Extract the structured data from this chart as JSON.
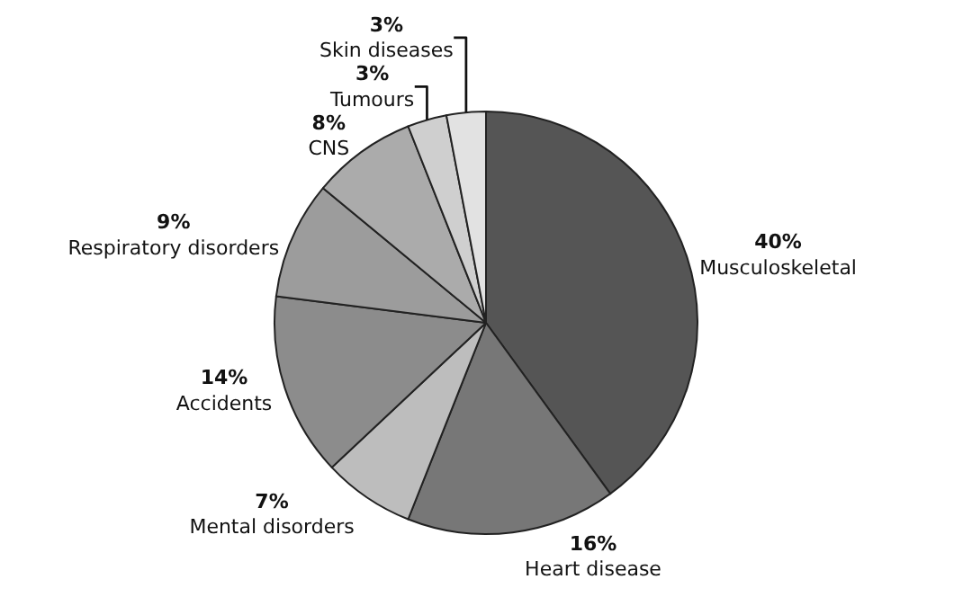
{
  "chart_data": {
    "type": "pie",
    "categories": [
      "Musculoskeletal",
      "Heart disease",
      "Mental disorders",
      "Accidents",
      "Respiratory disorders",
      "CNS",
      "Tumours",
      "Skin diseases"
    ],
    "values": [
      40,
      16,
      7,
      14,
      9,
      8,
      3,
      3
    ],
    "value_labels": [
      "40%",
      "16%",
      "7%",
      "14%",
      "9%",
      "8%",
      "3%",
      "3%"
    ],
    "colors": [
      "#555555",
      "#777777",
      "#bdbdbd",
      "#8c8c8c",
      "#9c9c9c",
      "#ababab",
      "#cfcfcf",
      "#e2e2e2"
    ],
    "legend": false
  }
}
